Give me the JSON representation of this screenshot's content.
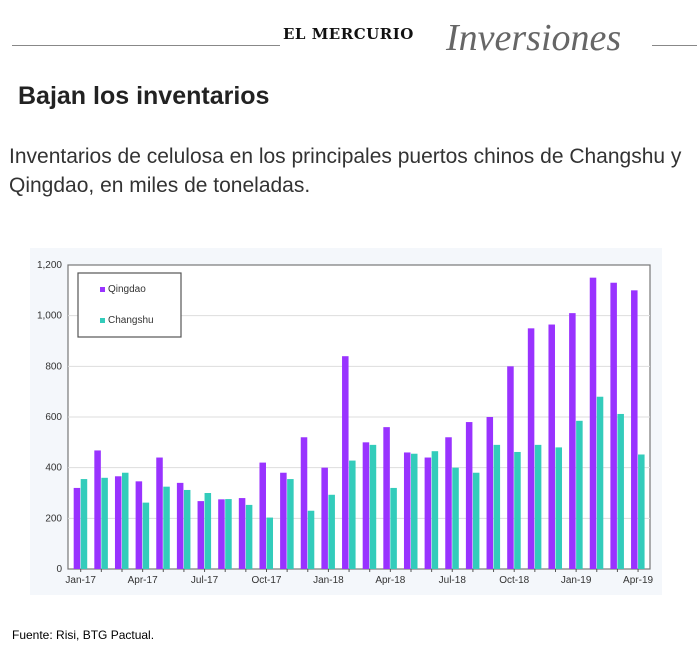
{
  "header": {
    "brand": "EL MERCURIO",
    "section": "Inversiones"
  },
  "title": "Bajan los inventarios",
  "subtitle": "Inventarios de celulosa en los principales puertos chinos de Changshu y Qingdao, en miles de toneladas.",
  "footer": "Fuente: Risi, BTG Pactual.",
  "chart_data": {
    "type": "bar",
    "title": "",
    "xlabel": "",
    "ylabel": "",
    "ylim": [
      0,
      1200
    ],
    "yticks": [
      "0",
      "200",
      "400",
      "600",
      "800",
      "1,000",
      "1,200"
    ],
    "grid": true,
    "legend_position": "top-left",
    "categories": [
      "Jan-17",
      "Feb-17",
      "Mar-17",
      "Apr-17",
      "May-17",
      "Jun-17",
      "Jul-17",
      "Aug-17",
      "Sep-17",
      "Oct-17",
      "Nov-17",
      "Dec-17",
      "Jan-18",
      "Feb-18",
      "Mar-18",
      "Apr-18",
      "May-18",
      "Jun-18",
      "Jul-18",
      "Aug-18",
      "Sep-18",
      "Oct-18",
      "Nov-18",
      "Dec-18",
      "Jan-19",
      "Feb-19",
      "Mar-19",
      "Apr-19"
    ],
    "xtick_labels": [
      "Jan-17",
      "Apr-17",
      "Jul-17",
      "Oct-17",
      "Jan-18",
      "Apr-18",
      "Jul-18",
      "Oct-18",
      "Jan-19",
      "Apr-19"
    ],
    "series": [
      {
        "name": "Qingdao",
        "color": "#9933ff",
        "values": [
          320,
          468,
          366,
          346,
          440,
          340,
          268,
          275,
          280,
          420,
          380,
          520,
          400,
          840,
          500,
          560,
          460,
          440,
          520,
          580,
          600,
          800,
          950,
          965,
          1010,
          1150,
          1130,
          1100
        ]
      },
      {
        "name": "Changshu",
        "color": "#33ccbb",
        "values": [
          355,
          360,
          380,
          262,
          325,
          312,
          300,
          276,
          253,
          203,
          355,
          230,
          293,
          428,
          490,
          320,
          455,
          465,
          400,
          380,
          490,
          462,
          490,
          480,
          585,
          680,
          612,
          452
        ]
      }
    ]
  }
}
